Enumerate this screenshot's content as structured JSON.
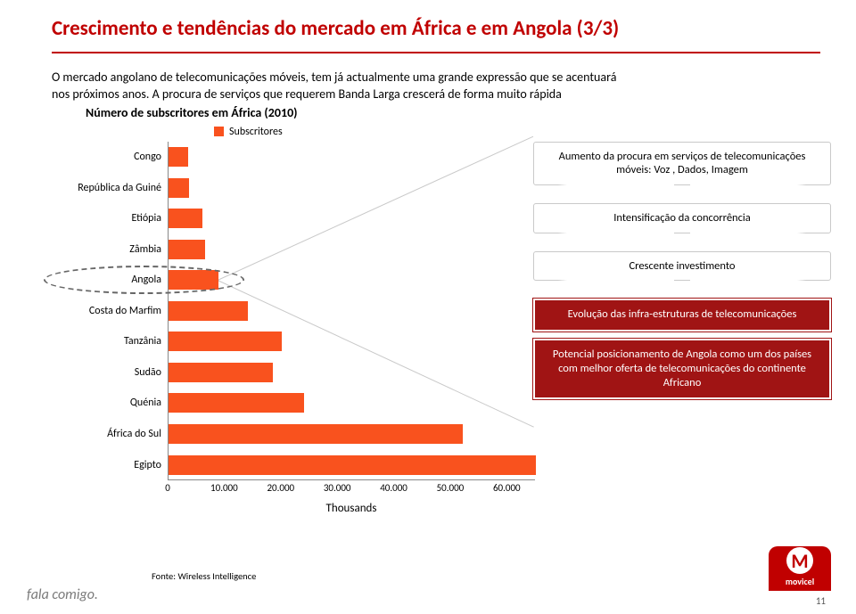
{
  "title": "Crescimento e tendências do mercado em África e em Angola (3/3)",
  "intro": "O mercado angolano de telecomunicações móveis, tem já actualmente uma grande expressão que se acentuará nos próximos anos. A procura de serviços que requerem Banda Larga crescerá de forma muito rápida",
  "chart": {
    "title": "Número de subscritores em África (2010)",
    "legend_label": "Subscritores",
    "series_color": "#f9521e",
    "categories": [
      "Congo",
      "República da Guiné",
      "Etiópia",
      "Zâmbia",
      "Angola",
      "Costa do Marfim",
      "Tanzânia",
      "Sudão",
      "Quénia",
      "África do Sul",
      "Egipto"
    ],
    "values": [
      3400,
      3600,
      6000,
      6400,
      8800,
      14000,
      20000,
      18500,
      24000,
      52000,
      65000
    ],
    "xlim": [
      0,
      65000
    ],
    "xticks": [
      0,
      10000,
      20000,
      30000,
      40000,
      50000,
      60000
    ],
    "xtick_labels": [
      "0",
      "10.000",
      "20.000",
      "30.000",
      "40.000",
      "50.000",
      "60.000"
    ],
    "x_title": "Thousands",
    "highlight_index": 4
  },
  "callouts": {
    "c1": "Aumento da procura em serviços de telecomunicações móveis: Voz , Dados, Imagem",
    "c2": "Intensificação da concorrência",
    "c3": "Crescente investimento",
    "r1": "Evolução das infra-estruturas de telecomunicações",
    "r2": "Potencial posicionamento de Angola como um dos países  com melhor oferta de telecomunicações do continente Africano"
  },
  "source": "Fonte: Wireless Intelligence",
  "footer": {
    "tagline": "fala comigo.",
    "logo_text": "movicel",
    "logo_letter": "M",
    "page": "11"
  }
}
